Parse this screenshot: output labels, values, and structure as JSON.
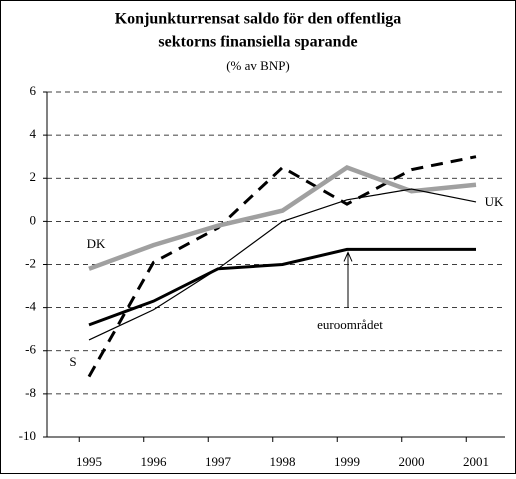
{
  "chart_data": {
    "type": "line",
    "title": [
      "Konjunkturrensat saldo för den offentliga",
      "sektorns finansiella sparande"
    ],
    "subtitle": "(% av BNP)",
    "categories": [
      "1995",
      "1996",
      "1997",
      "1998",
      "1999",
      "2000",
      "2001"
    ],
    "series": [
      {
        "name": "S",
        "color": "#000000",
        "line_style": "dashed",
        "weight": "thick",
        "values": [
          -7.2,
          -1.9,
          -0.3,
          2.5,
          0.8,
          2.4,
          3.0
        ]
      },
      {
        "name": "DK",
        "color": "#a0a0a0",
        "line_style": "solid",
        "weight": "thick",
        "values": [
          -2.2,
          -1.1,
          -0.2,
          0.5,
          2.5,
          1.4,
          1.7
        ]
      },
      {
        "name": "UK",
        "color": "#000000",
        "line_style": "solid",
        "weight": "thin",
        "values": [
          -5.5,
          -4.1,
          -2.2,
          0.0,
          1.0,
          1.5,
          0.9
        ]
      },
      {
        "name": "euroområdet",
        "color": "#000000",
        "line_style": "solid",
        "weight": "thick",
        "values": [
          -4.8,
          -3.7,
          -2.2,
          -2.0,
          -1.3,
          -1.3,
          -1.3
        ]
      }
    ],
    "ylim": [
      -10,
      6
    ],
    "yticks": [
      -10,
      -8,
      -6,
      -4,
      -2,
      0,
      2,
      4,
      6
    ],
    "grid": true
  }
}
